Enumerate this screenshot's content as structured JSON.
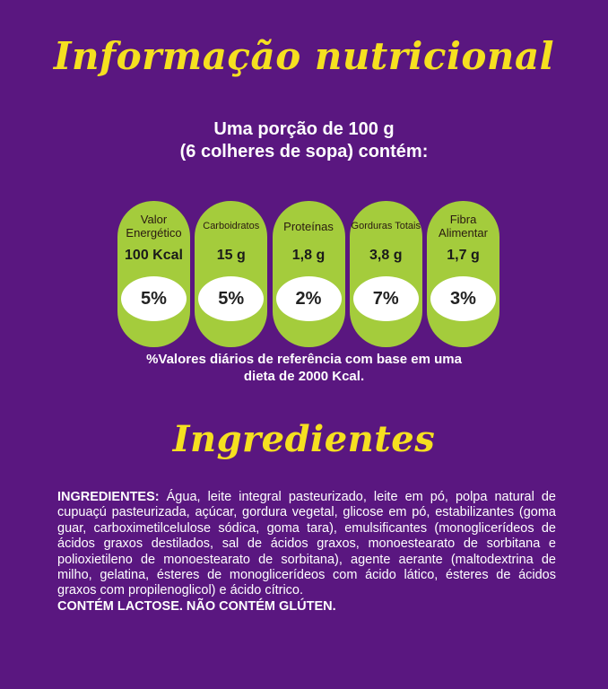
{
  "titles": {
    "nutrition": "Informação nutricional",
    "ingredients": "Ingredientes"
  },
  "portion": {
    "line1": "Uma porção de 100 g",
    "line2": "(6 colheres de sopa) contém:"
  },
  "nutrients": [
    {
      "label": "Valor Energético",
      "value": "100 Kcal",
      "percent": "5%"
    },
    {
      "label": "Carboidratos",
      "value": "15 g",
      "percent": "5%"
    },
    {
      "label": "Proteínas",
      "value": "1,8 g",
      "percent": "2%"
    },
    {
      "label": "Gorduras Totais",
      "value": "3,8 g",
      "percent": "7%"
    },
    {
      "label": "Fibra Alimentar",
      "value": "1,7 g",
      "percent": "3%"
    }
  ],
  "footnote": {
    "line1": "%Valores diários de referência com base em uma",
    "line2": "dieta de 2000 Kcal."
  },
  "ingredients": {
    "heading": "INGREDIENTES:",
    "text": "Água, leite integral pasteurizado, leite em pó, polpa natural de cupuaçú pasteurizada, açúcar, gordura vegetal, glicose em pó, estabilizantes (goma guar, carboximetilcelulose sódica, goma tara), emulsificantes (monoglicerídeos de ácidos graxos destilados, sal de ácidos graxos, monoestearato de sorbitana e polioxietileno de monoestearato de sorbitana), agente aerante (maltodextrina de milho, gelatina, ésteres de monoglicerídeos com ácido lático, ésteres de ácidos graxos com propilenoglicol) e ácido cítrico.",
    "contains": "CONTÉM LACTOSE. NÃO CONTÉM GLÚTEN."
  },
  "colors": {
    "background": "#5a1780",
    "title": "#f5e020",
    "panel": "#a4cc3c",
    "circle": "#ffffff"
  }
}
